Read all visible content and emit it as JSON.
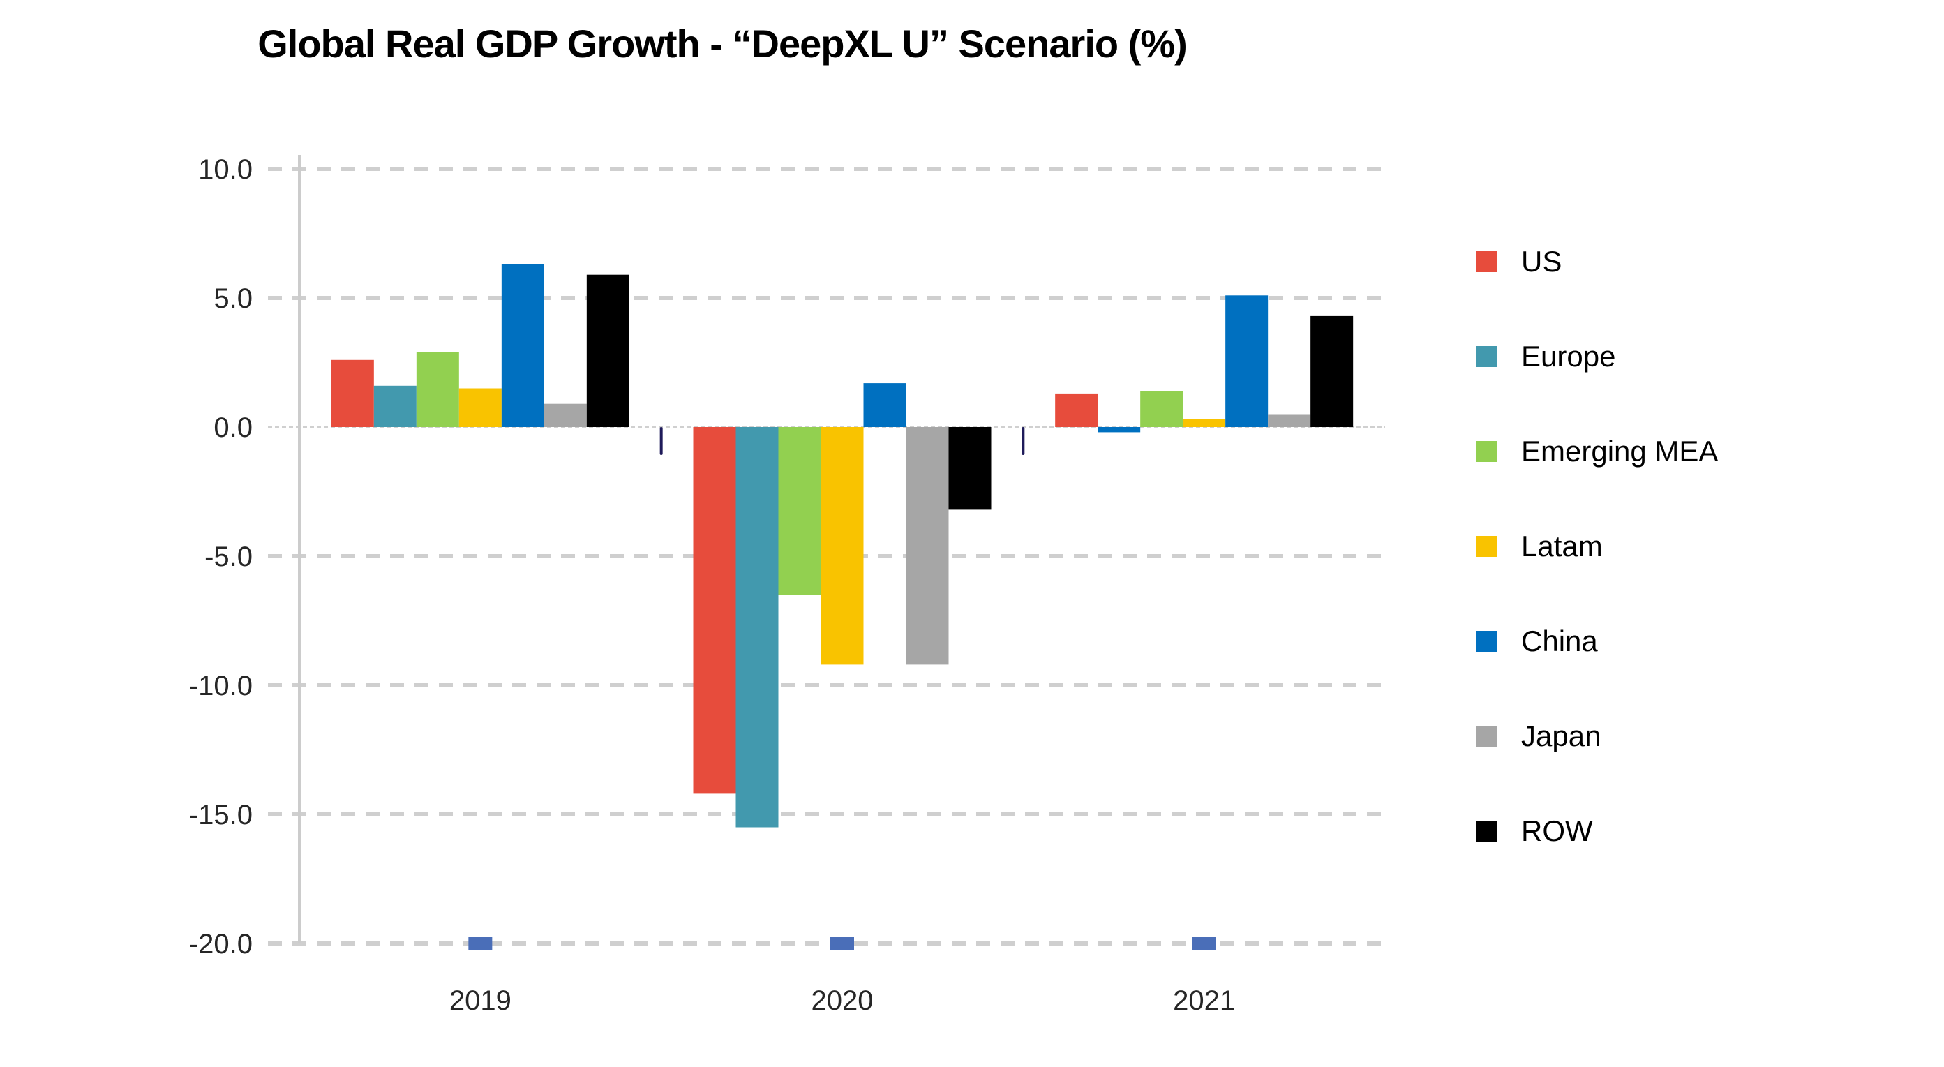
{
  "chart_data": {
    "type": "bar",
    "title": "Global Real GDP Growth - “DeepXL U” Scenario (%)",
    "xlabel": "",
    "ylabel": "",
    "categories": [
      "2019",
      "2020",
      "2021"
    ],
    "ylim": [
      -20,
      10
    ],
    "yticks": [
      10,
      5,
      0,
      -5,
      -10,
      -15,
      -20
    ],
    "ytick_labels": [
      "10.0",
      "5.0",
      "0.0",
      "-5.0",
      "-10.0",
      "-15.0",
      "-20.0"
    ],
    "grid": true,
    "legend_position": "right",
    "series": [
      {
        "name": "US",
        "color": "#E74C3C",
        "values": [
          2.6,
          -14.2,
          1.3
        ]
      },
      {
        "name": "Europe",
        "color": "#4299AE",
        "values": [
          1.6,
          -15.5,
          -0.2
        ],
        "point_colors": [
          null,
          null,
          "#0070C0"
        ]
      },
      {
        "name": "Emerging MEA",
        "color": "#92D050",
        "values": [
          2.9,
          -6.5,
          1.4
        ]
      },
      {
        "name": "Latam",
        "color": "#F9C300",
        "values": [
          1.5,
          -9.2,
          0.3
        ]
      },
      {
        "name": "China",
        "color": "#0070C0",
        "values": [
          6.3,
          1.7,
          5.1
        ]
      },
      {
        "name": "Japan",
        "color": "#A6A6A6",
        "values": [
          0.9,
          -9.2,
          0.5
        ]
      },
      {
        "name": "ROW",
        "color": "#000000",
        "values": [
          5.9,
          -3.2,
          4.3
        ]
      }
    ],
    "baseline_markers": {
      "value": -20,
      "color": "#4A6EB8"
    }
  }
}
